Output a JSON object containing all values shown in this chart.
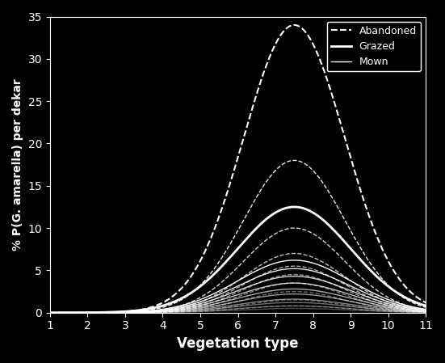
{
  "title": "",
  "xlabel": "Vegetation type",
  "ylabel": "% P(G. amarella) per dekar",
  "xlim": [
    1,
    11
  ],
  "ylim": [
    0,
    35
  ],
  "yticks": [
    0,
    5,
    10,
    15,
    20,
    25,
    30,
    35
  ],
  "xticks": [
    1,
    2,
    3,
    4,
    5,
    6,
    7,
    8,
    9,
    10,
    11
  ],
  "bg_color": "#000000",
  "text_color": "#ffffff",
  "legend_labels": [
    "Abandoned",
    "Grazed",
    "Mown"
  ],
  "legend_linestyles": [
    "--",
    "-",
    "-"
  ],
  "peak_x": 7.5,
  "sigma": 1.2,
  "abandoned_peaks": [
    34.0,
    18.0,
    10.0,
    7.0,
    5.5,
    4.5,
    3.5,
    2.5,
    1.5,
    0.8
  ],
  "grazed_peaks": [
    12.5
  ],
  "mown_peaks": [
    6.2,
    5.2,
    4.3,
    3.5,
    2.8,
    2.2,
    1.6,
    1.2,
    0.8,
    0.5
  ],
  "abandoned_sigma": 1.35,
  "grazed_sigma": 1.5,
  "mown_sigma": 1.5,
  "abandoned_peak_x": 7.5,
  "grazed_peak_x": 7.5,
  "mown_peak_x": 7.5
}
